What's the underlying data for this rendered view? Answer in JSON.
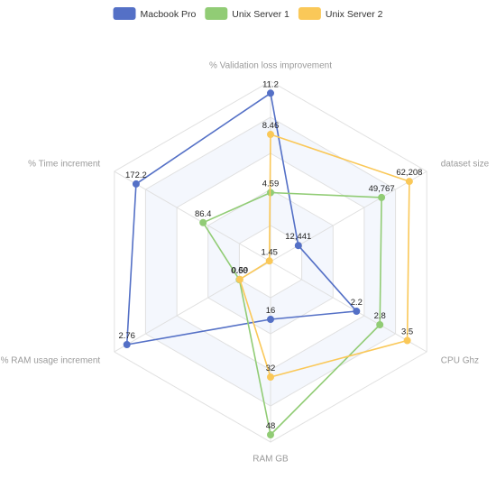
{
  "chart_data": {
    "type": "radar",
    "indicators": [
      {
        "name": "% Validation loss improvement",
        "max": 12
      },
      {
        "name": "dataset size",
        "max": 70000
      },
      {
        "name": "CPU Ghz",
        "max": 4
      },
      {
        "name": "RAM GB",
        "max": 50
      },
      {
        "name": "% RAM usage increment",
        "max": 3
      },
      {
        "name": "% Time increment",
        "max": 200
      }
    ],
    "series": [
      {
        "name": "Macbook Pro",
        "color": "#5470c6",
        "values": [
          11.2,
          12441,
          2.2,
          16,
          2.76,
          172.2
        ],
        "labels": [
          "11.2",
          "12,441",
          "2.2",
          "16",
          "2.76",
          "172.2"
        ]
      },
      {
        "name": "Unix Server 1",
        "color": "#91cc75",
        "values": [
          4.59,
          49767,
          2.8,
          48,
          0.6,
          86.4
        ],
        "labels": [
          "4.59",
          "49,767",
          "2.8",
          "48",
          "0.60",
          "86.4"
        ]
      },
      {
        "name": "Unix Server 2",
        "color": "#fac858",
        "values": [
          8.46,
          62208,
          3.5,
          32,
          0.59,
          1.45
        ],
        "labels": [
          "8.46",
          "62,208",
          "3.5",
          "32",
          "0.59",
          "1.45"
        ]
      }
    ],
    "legend_position": "top-center",
    "split_number": 5,
    "split_area_colors": [
      "#ffffff",
      "#f4f7fd"
    ],
    "grid": true
  }
}
